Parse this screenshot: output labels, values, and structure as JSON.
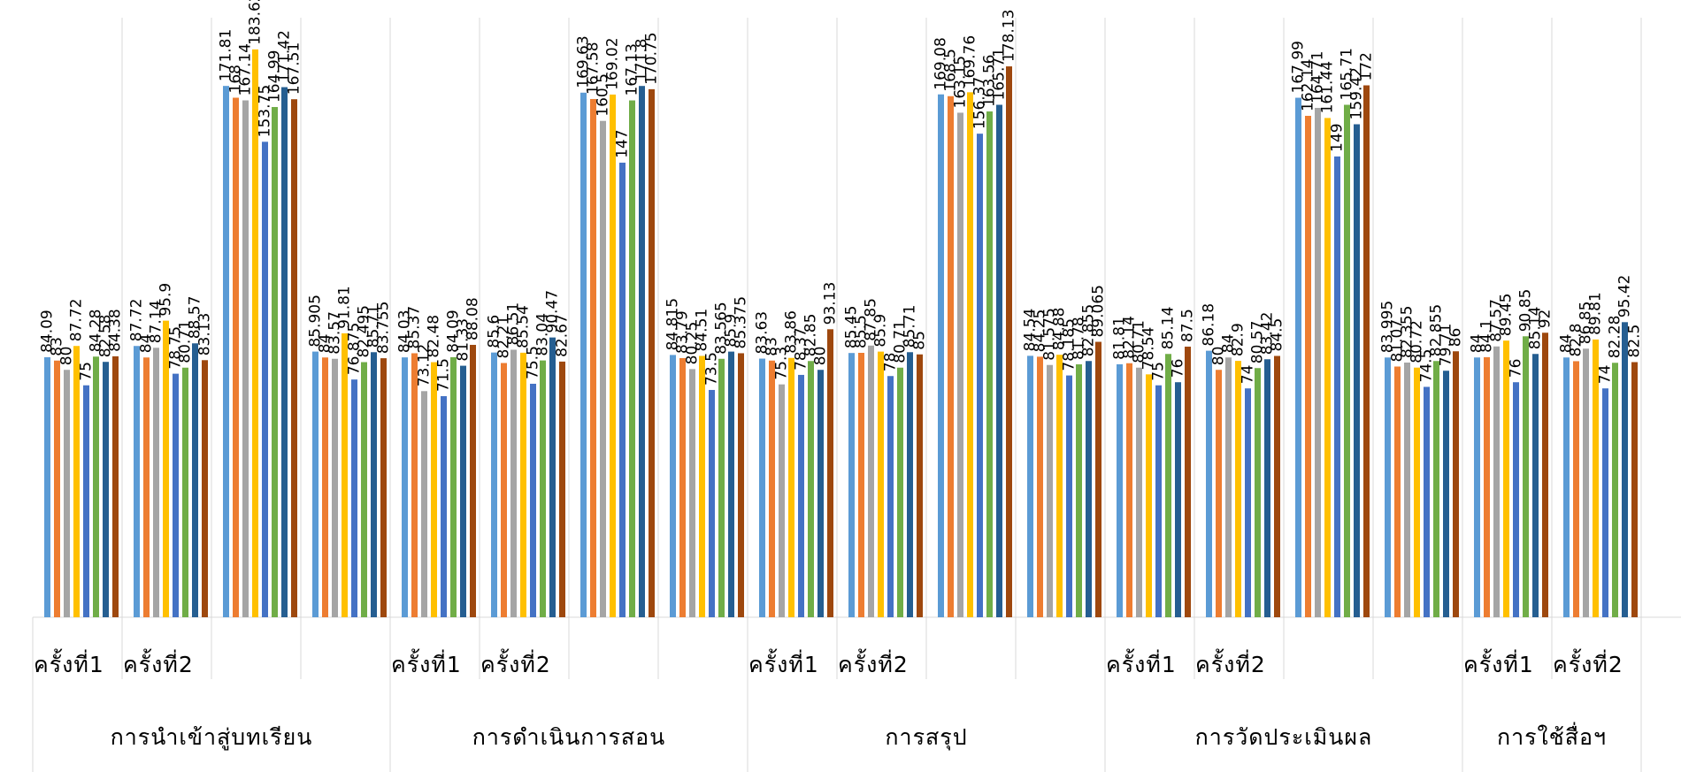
{
  "chart_data": {
    "type": "bar",
    "title": "",
    "xlabel": "",
    "ylabel": "",
    "ylim": [
      0,
      190
    ],
    "grid": false,
    "legend": "none",
    "series_colors": [
      "#5b9bd5",
      "#ed7d31",
      "#a5a5a5",
      "#ffc000",
      "#4472c4",
      "#70ad47",
      "#255e91",
      "#9e480e"
    ],
    "groups": [
      {
        "label": "การนำเข้าสู่บทเรียน",
        "sub": [
          {
            "label": "ครั้งที่1",
            "values": [
              84.09,
              83,
              80,
              87.72,
              75,
              84.28,
              82.58,
              84.38
            ]
          },
          {
            "label": "ครั้งที่2",
            "values": [
              87.72,
              84,
              87.14,
              95.9,
              78.75,
              80.71,
              88.57,
              83.13
            ]
          },
          {
            "label": "",
            "values": [
              171.81,
              168,
              167.14,
              183.62,
              153.75,
              164.99,
              171.42,
              167.51
            ]
          },
          {
            "label": "",
            "values": [
              85.905,
              84,
              83.57,
              91.81,
              76.875,
              82.495,
              85.71,
              83.755
            ]
          }
        ]
      },
      {
        "label": "การดำเนินการสอน",
        "sub": [
          {
            "label": "ครั้งที่1",
            "values": [
              84.03,
              85.37,
              73.12,
              82.48,
              71.5,
              84.09,
              81.33,
              88.08
            ]
          },
          {
            "label": "ครั้งที่2",
            "values": [
              85.6,
              82.21,
              86.51,
              85.54,
              75.5,
              83.04,
              90.47,
              82.67
            ]
          },
          {
            "label": "",
            "values": [
              169.63,
              167.58,
              160.5,
              169.02,
              147,
              167.13,
              171.8,
              170.75
            ]
          },
          {
            "label": "",
            "values": [
              84.815,
              83.79,
              80.25,
              84.51,
              73.5,
              83.565,
              85.9,
              85.375
            ]
          }
        ]
      },
      {
        "label": "การสรุป",
        "sub": [
          {
            "label": "ครั้งที่1",
            "values": [
              83.63,
              83,
              75.3,
              83.86,
              78.37,
              82.85,
              80,
              93.13
            ]
          },
          {
            "label": "ครั้งที่2",
            "values": [
              85.45,
              85.5,
              87.85,
              85.9,
              78,
              80.71,
              85.71,
              85
            ]
          },
          {
            "label": "",
            "values": [
              169.08,
              168.5,
              163.15,
              169.76,
              156.37,
              163.56,
              165.71,
              178.13
            ]
          },
          {
            "label": "",
            "values": [
              84.54,
              84.25,
              81.575,
              84.88,
              78.185,
              81.78,
              82.855,
              89.065
            ]
          }
        ]
      },
      {
        "label": "การวัดประเมินผล",
        "sub": [
          {
            "label": "ครั้งที่1",
            "values": [
              81.81,
              82.14,
              80.71,
              78.54,
              75,
              85.14,
              76,
              87.5
            ]
          },
          {
            "label": "ครั้งที่2",
            "values": [
              86.18,
              80,
              84,
              82.9,
              74,
              80.57,
              83.42,
              84.5
            ]
          },
          {
            "label": "",
            "values": [
              167.99,
              162.14,
              164.71,
              161.44,
              149,
              165.71,
              159.42,
              172
            ]
          },
          {
            "label": "",
            "values": [
              83.995,
              81.07,
              82.355,
              80.72,
              74.5,
              82.855,
              79.71,
              86
            ]
          }
        ]
      },
      {
        "label": "การใช้สื่อฯ",
        "sub": [
          {
            "label": "ครั้งที่1",
            "values": [
              84,
              84.1,
              87.57,
              89.45,
              76,
              90.85,
              85.14,
              92
            ]
          },
          {
            "label": "ครั้งที่2",
            "values": [
              84,
              82.8,
              86.85,
              89.81,
              74,
              82.28,
              95.42,
              82.5
            ]
          }
        ]
      }
    ]
  }
}
